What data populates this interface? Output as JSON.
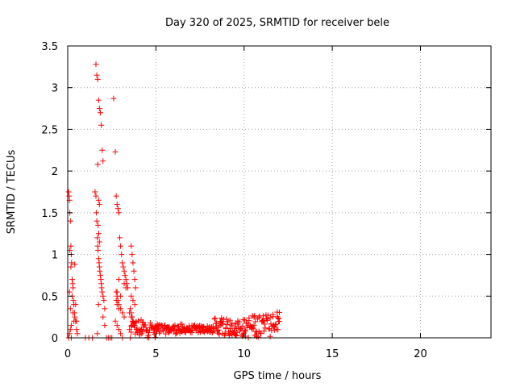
{
  "chart_data": {
    "type": "scatter",
    "title": "Day 320 of 2025, SRMTID for receiver bele",
    "xlabel": "GPS time / hours",
    "ylabel": "SRMTID / TECUs",
    "xlim": [
      0,
      24
    ],
    "ylim": [
      0,
      3.5
    ],
    "xticks": [
      0,
      5,
      10,
      15,
      20
    ],
    "xtick_labels": [
      "0",
      "5",
      "10",
      "15",
      "20"
    ],
    "yticks": [
      0,
      0.5,
      1,
      1.5,
      2,
      2.5,
      3,
      3.5
    ],
    "ytick_labels": [
      "0",
      "0.5",
      "1",
      "1.5",
      "2",
      "2.5",
      "3",
      "3.5"
    ],
    "grid": true,
    "marker": "+",
    "color": "#ff0000",
    "series": [
      {
        "name": "SRMTID",
        "x": [
          0.05,
          0.08,
          0.1,
          0.12,
          0.15,
          0.18,
          0.2,
          0.22,
          0.25,
          0.28,
          0.3,
          0.32,
          0.35,
          0.38,
          0.4,
          0.45,
          0.5,
          0.55,
          0.1,
          0.15,
          0.2,
          0.12,
          0.18,
          0.25,
          0.3,
          0.35,
          0.05,
          0.1,
          0.15,
          0.2,
          0.4,
          0.45,
          0.5,
          1.0,
          1.2,
          1.4,
          1.55,
          1.6,
          1.62,
          1.65,
          1.68,
          1.7,
          1.72,
          1.75,
          1.78,
          1.8,
          1.82,
          1.85,
          1.88,
          1.9,
          1.92,
          1.95,
          2.0,
          2.05,
          2.1,
          1.6,
          1.65,
          1.7,
          1.75,
          1.8,
          1.85,
          1.9,
          1.95,
          2.0,
          1.7,
          1.75,
          1.8,
          1.72,
          1.76,
          1.8,
          1.68,
          1.74,
          2.2,
          2.3,
          2.4,
          2.5,
          2.0,
          2.1,
          2.6,
          2.7,
          2.75,
          2.8,
          2.85,
          2.9,
          2.95,
          3.0,
          3.05,
          3.1,
          3.15,
          3.2,
          3.25,
          3.3,
          3.35,
          3.4,
          2.75,
          2.8,
          2.85,
          2.9,
          3.0,
          3.1,
          3.2,
          2.7,
          2.8,
          2.9,
          3.0,
          3.1,
          3.2,
          3.3,
          2.8,
          2.9,
          3.0,
          2.75,
          2.8,
          2.9,
          3.5,
          3.6,
          3.7,
          3.8,
          3.9,
          3.55,
          3.6,
          3.65,
          3.7,
          3.75,
          3.8,
          3.85,
          3.6,
          3.7,
          3.8,
          3.55,
          3.6,
          3.65,
          3.7,
          3.75,
          3.5
        ],
        "y": [
          1.75,
          1.7,
          1.65,
          1.5,
          1.4,
          1.1,
          1.0,
          0.9,
          0.7,
          0.65,
          0.6,
          0.45,
          0.4,
          0.3,
          0.25,
          0.2,
          0.1,
          0.05,
          0.55,
          0.35,
          0.15,
          1.05,
          0.85,
          0.5,
          0.3,
          0.2,
          0.0,
          0.05,
          0.1,
          0.0,
          0.88,
          0.4,
          0.2,
          0.0,
          0.0,
          0.0,
          1.75,
          1.7,
          1.5,
          1.4,
          1.2,
          1.1,
          1.05,
          0.95,
          0.9,
          0.85,
          0.8,
          0.75,
          0.7,
          0.65,
          0.6,
          0.55,
          0.5,
          0.45,
          0.35,
          3.28,
          3.15,
          3.1,
          2.85,
          2.75,
          2.7,
          2.55,
          2.25,
          2.12,
          2.08,
          1.65,
          1.6,
          1.35,
          1.25,
          1.15,
          0.05,
          0.4,
          0.0,
          0.0,
          0.0,
          0.0,
          0.25,
          0.15,
          2.87,
          2.23,
          1.7,
          1.6,
          1.55,
          1.5,
          1.2,
          1.1,
          1.0,
          0.9,
          0.85,
          0.8,
          0.75,
          0.7,
          0.65,
          0.6,
          0.55,
          0.5,
          0.45,
          0.4,
          0.35,
          0.3,
          0.25,
          0.2,
          0.15,
          0.1,
          0.05,
          0.0,
          0.65,
          0.6,
          0.55,
          0.7,
          0.5,
          0.45,
          0.4,
          0.35,
          0.3,
          0.25,
          0.2,
          0.15,
          0.1,
          0.0,
          1.1,
          1.0,
          0.9,
          0.8,
          0.7,
          0.6,
          0.5,
          0.45,
          0.4,
          0.35,
          0.3,
          0.25,
          0.2,
          0.15,
          0.1
        ]
      }
    ],
    "dense_band": {
      "description": "continuous low-level points",
      "x_start": 3.6,
      "x_end": 12.0,
      "step": 0.04,
      "base_level": 0.1
    }
  }
}
